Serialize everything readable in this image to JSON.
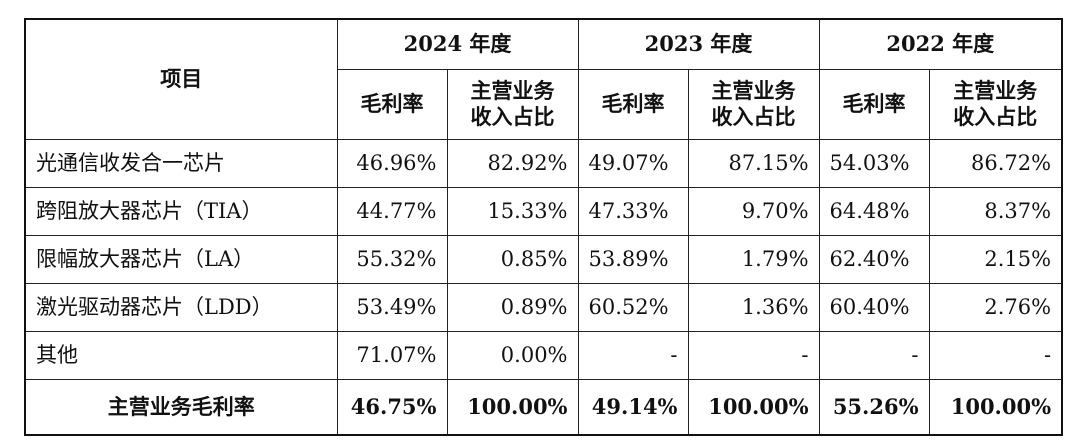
{
  "table": {
    "item_header": "项目",
    "years": [
      "2024 年度",
      "2023 年度",
      "2022 年度"
    ],
    "sub_headers": {
      "gross_margin": "毛利率",
      "revenue_share_line1": "主营业务",
      "revenue_share_line2": "收入占比"
    },
    "rows": [
      {
        "name": "光通信收发合一芯片",
        "values": [
          "46.96%",
          "82.92%",
          "49.07%",
          "87.15%",
          "54.03%",
          "86.72%"
        ]
      },
      {
        "name": "跨阻放大器芯片（TIA）",
        "values": [
          "44.77%",
          "15.33%",
          "47.33%",
          "9.70%",
          "64.48%",
          "8.37%"
        ]
      },
      {
        "name": "限幅放大器芯片（LA）",
        "values": [
          "55.32%",
          "0.85%",
          "53.89%",
          "1.79%",
          "62.40%",
          "2.15%"
        ]
      },
      {
        "name": "激光驱动器芯片（LDD）",
        "values": [
          "53.49%",
          "0.89%",
          "60.52%",
          "1.36%",
          "60.40%",
          "2.76%"
        ]
      },
      {
        "name": "其他",
        "values": [
          "71.07%",
          "0.00%",
          "-",
          "-",
          "-",
          "-"
        ]
      }
    ],
    "total": {
      "name": "主营业务毛利率",
      "values": [
        "46.75%",
        "100.00%",
        "49.14%",
        "100.00%",
        "55.26%",
        "100.00%"
      ]
    }
  }
}
